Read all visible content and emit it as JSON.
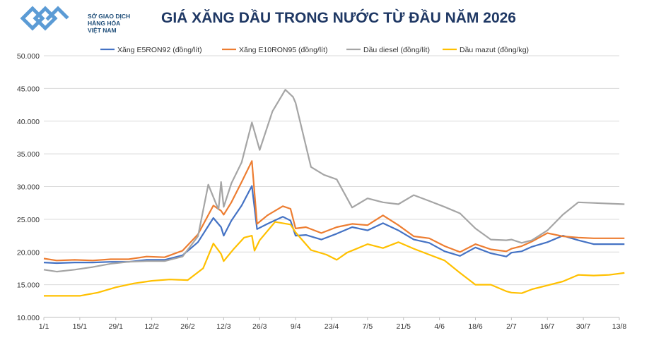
{
  "logo": {
    "line1": "SỞ GIAO DỊCH",
    "line2": "HÀNG HÓA",
    "line3": "VIỆT NAM"
  },
  "chart_data": {
    "type": "line",
    "title": "GIÁ XĂNG DẦU TRONG NƯỚC TỪ ĐẦU NĂM 2026",
    "xlabel": "",
    "ylabel": "",
    "ylim": [
      10000,
      50000
    ],
    "yticks": [
      "10.000",
      "15.000",
      "20.000",
      "25.000",
      "30.000",
      "35.000",
      "40.000",
      "45.000",
      "50.000"
    ],
    "ytick_values": [
      10000,
      15000,
      20000,
      25000,
      30000,
      35000,
      40000,
      45000,
      50000
    ],
    "xticks": [
      "1/1",
      "15/1",
      "29/1",
      "12/2",
      "26/2",
      "12/3",
      "26/3",
      "9/4",
      "23/4",
      "7/5",
      "21/5",
      "4/6",
      "18/6",
      "2/7",
      "16/7",
      "30/7",
      "13/8"
    ],
    "xtick_days": [
      0,
      14,
      28,
      42,
      56,
      70,
      84,
      98,
      112,
      126,
      140,
      154,
      168,
      182,
      196,
      210,
      224
    ],
    "grid": true,
    "legend_position": "top",
    "series": [
      {
        "name": "Xăng E5RON92 (đồng/lít)",
        "color": "#4472c4",
        "x": [
          0,
          5,
          12,
          19,
          26,
          33,
          40,
          47,
          54,
          60,
          66,
          69,
          70,
          73,
          77,
          81,
          83,
          87,
          93,
          96,
          98,
          102,
          108,
          114,
          120,
          126,
          132,
          138,
          144,
          150,
          156,
          162,
          168,
          174,
          180,
          182,
          186,
          190,
          196,
          202,
          208,
          214,
          220,
          226
        ],
        "y": [
          18400,
          18300,
          18400,
          18400,
          18500,
          18500,
          18800,
          18800,
          19500,
          21500,
          25200,
          23800,
          22500,
          24800,
          27100,
          30100,
          23500,
          24300,
          25400,
          24800,
          22500,
          22600,
          21900,
          22800,
          23800,
          23300,
          24400,
          23300,
          21900,
          21400,
          20100,
          19400,
          20700,
          19800,
          19300,
          19900,
          20100,
          20800,
          21500,
          22500,
          21800,
          21200,
          21200,
          21200
        ]
      },
      {
        "name": "Xăng E10RON95 (đồng/lít)",
        "color": "#ed7d31",
        "x": [
          0,
          5,
          12,
          19,
          26,
          33,
          40,
          47,
          54,
          60,
          66,
          69,
          70,
          73,
          77,
          81,
          83,
          87,
          93,
          96,
          98,
          102,
          108,
          114,
          120,
          126,
          132,
          138,
          144,
          150,
          156,
          162,
          168,
          174,
          180,
          182,
          186,
          190,
          196,
          202,
          208,
          214,
          220,
          226
        ],
        "y": [
          19000,
          18700,
          18800,
          18700,
          18900,
          18900,
          19300,
          19200,
          20200,
          22700,
          27100,
          26300,
          25700,
          27600,
          30700,
          33900,
          24300,
          25600,
          27000,
          26600,
          23600,
          23800,
          22900,
          23800,
          24300,
          24100,
          25600,
          24100,
          22400,
          22100,
          20900,
          20000,
          21200,
          20400,
          20100,
          20500,
          20900,
          21600,
          22900,
          22400,
          22200,
          22100,
          22100,
          22100
        ]
      },
      {
        "name": "Dầu diesel (đồng/lít)",
        "color": "#a5a5a5",
        "x": [
          0,
          5,
          12,
          19,
          26,
          33,
          40,
          47,
          54,
          60,
          64,
          67,
          68,
          69,
          70,
          73,
          77,
          81,
          82,
          84,
          89,
          94,
          97,
          98,
          104,
          109,
          114,
          120,
          126,
          132,
          138,
          144,
          150,
          156,
          162,
          168,
          174,
          180,
          182,
          186,
          190,
          196,
          202,
          208,
          214,
          220,
          226
        ],
        "y": [
          17300,
          17000,
          17300,
          17700,
          18200,
          18500,
          18600,
          18600,
          19300,
          22400,
          30300,
          27400,
          26500,
          30700,
          26900,
          30500,
          33700,
          39800,
          38400,
          35600,
          41500,
          44800,
          43700,
          42800,
          33000,
          31800,
          31100,
          26800,
          28200,
          27600,
          27300,
          28700,
          27800,
          26900,
          25900,
          23600,
          21900,
          21800,
          21900,
          21400,
          21800,
          23300,
          25700,
          27600,
          27500,
          27400,
          27300
        ]
      },
      {
        "name": "Dầu mazut (đồng/kg)",
        "color": "#ffc000",
        "x": [
          0,
          7,
          14,
          21,
          28,
          35,
          42,
          49,
          56,
          62,
          66,
          69,
          70,
          74,
          78,
          81,
          82,
          84,
          90,
          96,
          98,
          104,
          110,
          114,
          118,
          126,
          132,
          138,
          144,
          150,
          156,
          162,
          168,
          174,
          180,
          182,
          186,
          190,
          196,
          202,
          208,
          214,
          220,
          226
        ],
        "y": [
          13300,
          13300,
          13300,
          13800,
          14600,
          15200,
          15600,
          15800,
          15700,
          17500,
          21300,
          19700,
          18600,
          20500,
          22200,
          22500,
          20200,
          21800,
          24600,
          24200,
          23000,
          20300,
          19600,
          18800,
          19900,
          21200,
          20600,
          21500,
          20500,
          19600,
          18700,
          16800,
          15000,
          15000,
          14000,
          13800,
          13700,
          14300,
          14900,
          15500,
          16500,
          16400,
          16500,
          16800
        ]
      }
    ]
  }
}
